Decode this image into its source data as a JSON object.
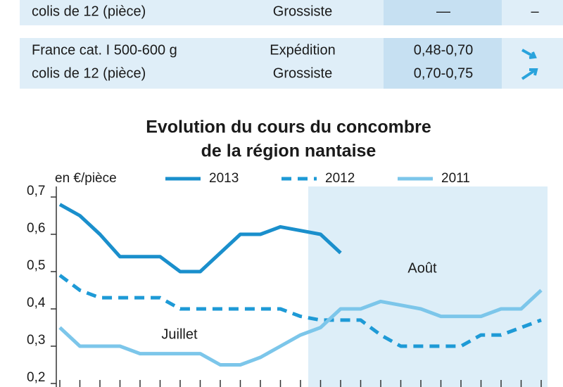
{
  "table": {
    "rows": [
      {
        "product": [
          "colis de 12 (pièce)"
        ],
        "stage": [
          "Grossiste"
        ],
        "price": [
          "—"
        ],
        "trend": [
          "–"
        ]
      },
      {
        "product": [
          "France cat. I 500-600 g",
          "colis de 12 (pièce)"
        ],
        "stage": [
          "Expédition",
          "Grossiste"
        ],
        "price": [
          "0,48-0,70",
          "0,70-0,75"
        ],
        "trend": []
      }
    ]
  },
  "chart_data": {
    "type": "line",
    "title": [
      "Evolution du cours du concombre",
      "de la région nantaise"
    ],
    "y_label": "en €/pièce",
    "annotations": [
      "Juillet",
      "Août"
    ],
    "categories": [
      null,
      null,
      null,
      null,
      null,
      null,
      null,
      null,
      null,
      null,
      null,
      null,
      null,
      null,
      null,
      null,
      null,
      null,
      null,
      null,
      null,
      null,
      null,
      null,
      null
    ],
    "ylim": [
      0.2,
      0.7
    ],
    "yticks": [
      {
        "value": 0.2,
        "label": "0,2"
      },
      {
        "value": 0.3,
        "label": "0,3"
      },
      {
        "value": 0.4,
        "label": "0,4"
      },
      {
        "value": 0.5,
        "label": "0,5"
      },
      {
        "value": 0.6,
        "label": "0,6"
      },
      {
        "value": 0.7,
        "label": "0,7"
      }
    ],
    "series": [
      {
        "name": "2013",
        "color": "#1a8fcc",
        "dash": false,
        "values": [
          0.68,
          0.65,
          0.6,
          0.54,
          0.54,
          0.54,
          0.5,
          0.5,
          0.55,
          0.6,
          0.6,
          0.62,
          0.61,
          0.6,
          0.55,
          null,
          null,
          null,
          null,
          null,
          null,
          null,
          null,
          null,
          null
        ]
      },
      {
        "name": "2012",
        "color": "#1e9ad6",
        "dash": true,
        "values": [
          0.49,
          0.45,
          0.43,
          0.43,
          0.43,
          0.43,
          0.4,
          0.4,
          0.4,
          0.4,
          0.4,
          0.4,
          0.38,
          0.37,
          0.37,
          0.37,
          0.33,
          0.3,
          0.3,
          0.3,
          0.3,
          0.33,
          0.33,
          0.35,
          0.37
        ]
      },
      {
        "name": "2011",
        "color": "#7cc6ea",
        "dash": false,
        "values": [
          0.35,
          0.3,
          0.3,
          0.3,
          0.28,
          0.28,
          0.28,
          0.28,
          0.25,
          0.25,
          0.27,
          0.3,
          0.33,
          0.35,
          0.4,
          0.4,
          0.42,
          0.41,
          0.4,
          0.38,
          0.38,
          0.38,
          0.4,
          0.4,
          0.45
        ]
      }
    ]
  }
}
